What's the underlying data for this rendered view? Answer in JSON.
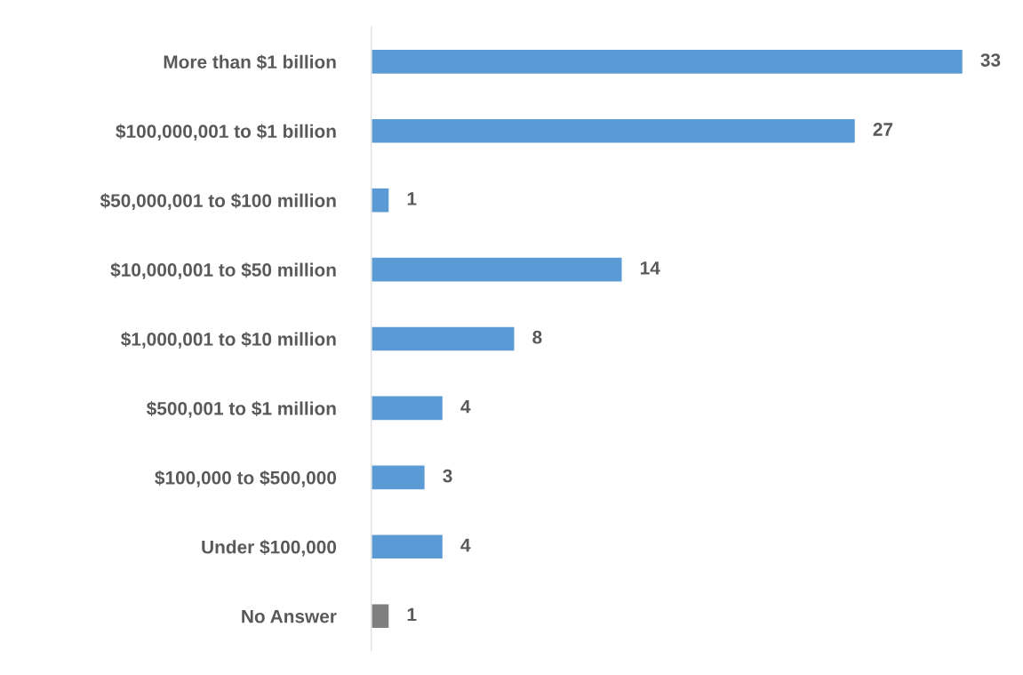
{
  "chart_data": {
    "type": "bar",
    "orientation": "horizontal",
    "categories": [
      "More than $1 billion",
      "$100,000,001 to $1 billion",
      "$50,000,001 to $100 million",
      "$10,000,001 to $50 million",
      "$1,000,001 to $10 million",
      "$500,001 to $1 million",
      "$100,000 to $500,000",
      "Under $100,000",
      "No Answer"
    ],
    "values": [
      33,
      27,
      1,
      14,
      8,
      4,
      3,
      4,
      1
    ],
    "colors": [
      "#5b9bd5",
      "#5b9bd5",
      "#5b9bd5",
      "#5b9bd5",
      "#5b9bd5",
      "#5b9bd5",
      "#5b9bd5",
      "#5b9bd5",
      "#7f7f7f"
    ],
    "data_labels": true,
    "grid": false,
    "legend": false
  }
}
